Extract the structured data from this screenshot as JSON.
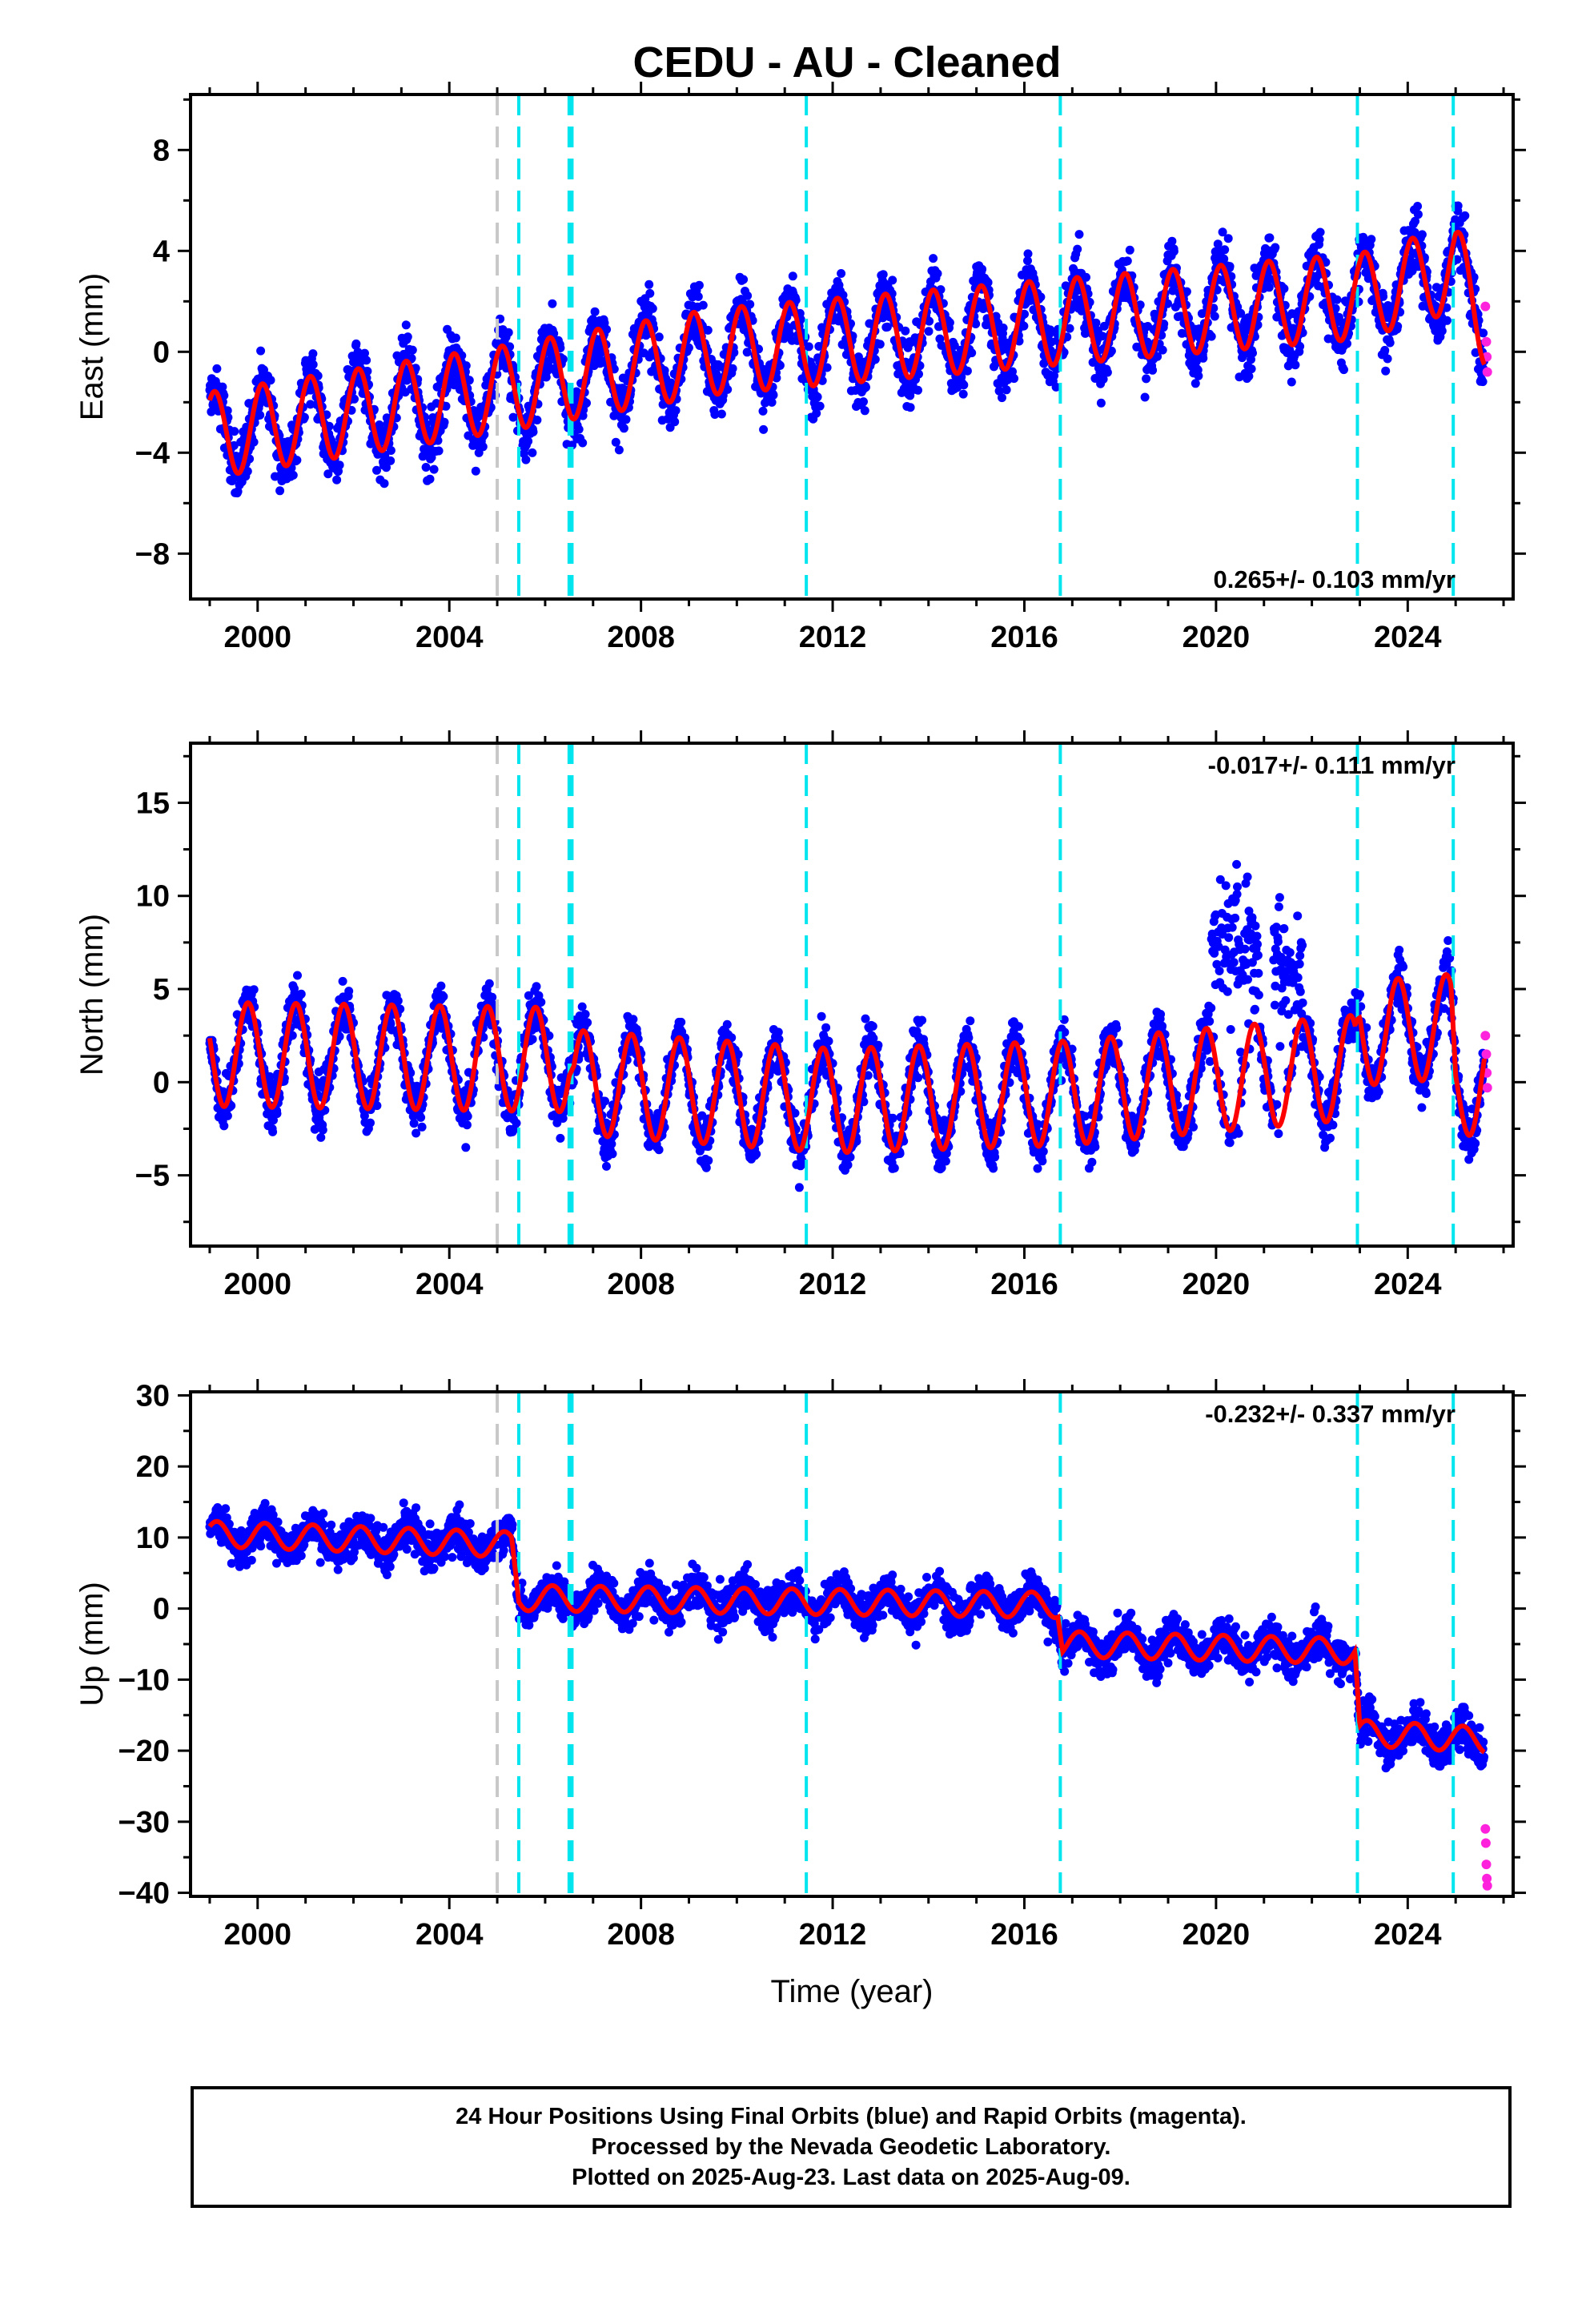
{
  "title": "CEDU  - AU - Cleaned",
  "chart_data": [
    {
      "type": "scatter",
      "ylabel": "East (mm)",
      "xlabel": "",
      "xlim": [
        1998.6,
        2026.2
      ],
      "ylim": [
        -9.8,
        10.2
      ],
      "xticks": [
        2000,
        2004,
        2008,
        2012,
        2016,
        2020,
        2024
      ],
      "yticks": [
        -8,
        -4,
        0,
        4,
        8
      ],
      "rate": "0.265+/- 0.103 mm/yr",
      "rate_position": "bottom-right",
      "fit": {
        "start": 1999.0,
        "end": 2025.6,
        "trend": [
          [
            1999.0,
            -3.3
          ],
          [
            2005.0,
            -1.5
          ],
          [
            2009.5,
            0.0
          ],
          [
            2016.8,
            1.2
          ],
          [
            2023.0,
            2.2
          ],
          [
            2025.0,
            3.3
          ],
          [
            2025.6,
            1.2
          ]
        ],
        "amplitude": 1.7,
        "phase": 0.15
      },
      "scatter_noise": 1.6,
      "steps": [
        {
          "x": 2005.0,
          "color": "#c8c8c8"
        },
        {
          "x": 2005.45,
          "color": "#00e5ee"
        },
        {
          "x": 2006.5,
          "color": "#00e5ee"
        },
        {
          "x": 2006.56,
          "color": "#00e5ee"
        },
        {
          "x": 2011.45,
          "color": "#00e5ee"
        },
        {
          "x": 2016.75,
          "color": "#00e5ee"
        },
        {
          "x": 2022.95,
          "color": "#00e5ee"
        },
        {
          "x": 2024.95,
          "color": "#00e5ee"
        }
      ],
      "rapid": [
        [
          2025.62,
          1.8
        ],
        [
          2025.64,
          0.4
        ],
        [
          2025.65,
          -0.2
        ],
        [
          2025.66,
          -0.8
        ]
      ]
    },
    {
      "type": "scatter",
      "ylabel": "North (mm)",
      "xlabel": "",
      "xlim": [
        1998.6,
        2026.2
      ],
      "ylim": [
        -8.8,
        18.2
      ],
      "xticks": [
        2000,
        2004,
        2008,
        2012,
        2016,
        2020,
        2024
      ],
      "yticks": [
        -5,
        0,
        5,
        10,
        15
      ],
      "rate": "-0.017+/- 0.111 mm/yr",
      "rate_position": "top-right",
      "fit": {
        "start": 1999.0,
        "end": 2025.6,
        "trend": [
          [
            1999.0,
            1.5
          ],
          [
            2006.5,
            1.2
          ],
          [
            2006.6,
            0.0
          ],
          [
            2012.0,
            -1.0
          ],
          [
            2016.8,
            -0.6
          ],
          [
            2022.9,
            0.8
          ],
          [
            2023.0,
            2.6
          ],
          [
            2024.9,
            3.0
          ],
          [
            2025.0,
            -0.5
          ],
          [
            2025.6,
            0.4
          ]
        ],
        "amplitude": 2.8,
        "phase": 0.45
      },
      "scatter_noise": 1.7,
      "bursts": [
        {
          "x0": 2019.9,
          "x1": 2020.9,
          "y": 7.5,
          "spread": 4.5
        },
        {
          "x0": 2021.2,
          "x1": 2021.8,
          "y": 6.0,
          "spread": 4.0
        }
      ],
      "steps": [
        {
          "x": 2005.0,
          "color": "#c8c8c8"
        },
        {
          "x": 2005.45,
          "color": "#00e5ee"
        },
        {
          "x": 2006.5,
          "color": "#00e5ee"
        },
        {
          "x": 2006.56,
          "color": "#00e5ee"
        },
        {
          "x": 2011.45,
          "color": "#00e5ee"
        },
        {
          "x": 2016.75,
          "color": "#00e5ee"
        },
        {
          "x": 2022.95,
          "color": "#00e5ee"
        },
        {
          "x": 2024.95,
          "color": "#00e5ee"
        }
      ],
      "rapid": [
        [
          2025.62,
          2.5
        ],
        [
          2025.64,
          1.5
        ],
        [
          2025.65,
          0.5
        ],
        [
          2025.66,
          -0.3
        ]
      ]
    },
    {
      "type": "scatter",
      "ylabel": "Up (mm)",
      "xlabel": "Time (year)",
      "xlim": [
        1998.6,
        2026.2
      ],
      "ylim": [
        -40.5,
        30.5
      ],
      "xticks": [
        2000,
        2004,
        2008,
        2012,
        2016,
        2020,
        2024
      ],
      "yticks": [
        -40,
        -30,
        -20,
        -10,
        0,
        10,
        20,
        30
      ],
      "rate": "-0.232+/- 0.337 mm/yr",
      "rate_position": "top-right",
      "fit": {
        "start": 1999.0,
        "end": 2025.6,
        "trend": [
          [
            1999.0,
            10.5
          ],
          [
            2005.3,
            9.0
          ],
          [
            2005.45,
            1.5
          ],
          [
            2016.7,
            0.5
          ],
          [
            2016.8,
            -5.0
          ],
          [
            2022.9,
            -6.0
          ],
          [
            2023.0,
            -17.5
          ],
          [
            2025.6,
            -18.5
          ]
        ],
        "amplitude": 1.8,
        "phase": 0.1
      },
      "scatter_noise": 3.6,
      "steps": [
        {
          "x": 2005.0,
          "color": "#c8c8c8"
        },
        {
          "x": 2005.45,
          "color": "#00e5ee"
        },
        {
          "x": 2006.5,
          "color": "#00e5ee"
        },
        {
          "x": 2006.56,
          "color": "#00e5ee"
        },
        {
          "x": 2011.45,
          "color": "#00e5ee"
        },
        {
          "x": 2016.75,
          "color": "#00e5ee"
        },
        {
          "x": 2022.95,
          "color": "#00e5ee"
        },
        {
          "x": 2024.95,
          "color": "#00e5ee"
        }
      ],
      "rapid": [
        [
          2025.62,
          -31
        ],
        [
          2025.63,
          -33
        ],
        [
          2025.64,
          -36
        ],
        [
          2025.65,
          -38
        ],
        [
          2025.66,
          -39
        ]
      ]
    }
  ],
  "colors": {
    "final": "#0000ff",
    "rapid": "#ff22dd",
    "fit": "#ff0000"
  },
  "footer": {
    "line1": "24 Hour Positions Using Final Orbits (blue) and Rapid Orbits (magenta).",
    "line2": "Processed by the Nevada Geodetic Laboratory.",
    "line3": "Plotted on 2025-Aug-23. Last data on 2025-Aug-09."
  }
}
